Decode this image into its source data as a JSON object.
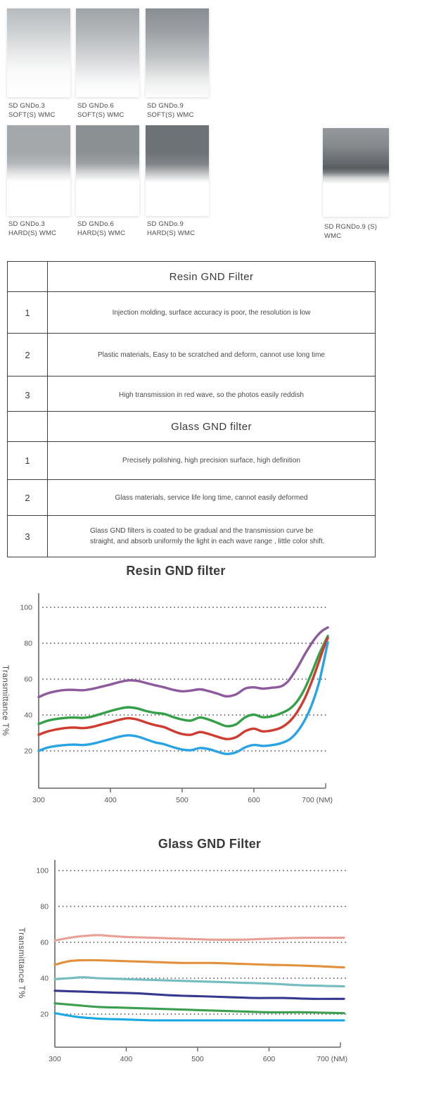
{
  "filters": {
    "soft": [
      {
        "line1": "SD GNDo.3",
        "line2": "SOFT(S) WMC",
        "gradient": "linear-gradient(180deg,#b7bbbe 0%,#c9ccce 22%,#e4e6e7 48%,#fafafa 70%,#ffffff 100%)"
      },
      {
        "line1": "SD GNDo.6",
        "line2": "SOFT(S) WMC",
        "gradient": "linear-gradient(180deg,#9ea3a7 0%,#b2b6b9 25%,#d3d5d7 55%,#f6f7f7 82%,#ffffff 100%)"
      },
      {
        "line1": "SD GNDo.9",
        "line2": "SOFT(S) WMC",
        "gradient": "linear-gradient(180deg,#888d91 0%,#9b9fa3 25%,#c0c3c5 55%,#eceded 82%,#fdfdfd 100%)"
      }
    ],
    "hard": [
      {
        "line1": "SD GNDo.3",
        "line2": "HARD(S) WMC",
        "gradient": "linear-gradient(180deg,#a4a8ab 0%,#a4a8ab 30%,#b4b7ba 42%,#e2e3e4 53%,#ffffff 62%,#ffffff 100%)"
      },
      {
        "line1": "SD GNDo.6",
        "line2": "HARD(S) WMC",
        "gradient": "linear-gradient(180deg,#8b9093 0%,#8b9093 30%,#9da1a4 42%,#d8dadb 53%,#ffffff 62%,#ffffff 100%)"
      },
      {
        "line1": "SD GNDo.9",
        "line2": "HARD(S) WMC",
        "gradient": "linear-gradient(180deg,#6d7276 0%,#6d7276 30%,#82868a 43%,#c8cacb 54%,#ffffff 63%,#ffffff 100%)"
      }
    ],
    "reverse": {
      "line1": "SD RGNDo.9 (S)",
      "line2": "WMC",
      "gradient": "linear-gradient(180deg,#95999c 0%,#85898c 20%,#686c70 38%,#595d60 45%,#787c7f 50%,#d0d2d3 56%,#ffffff 63%,#ffffff 100%)"
    }
  },
  "tables": [
    {
      "title": "Resin GND Filter",
      "rows": [
        {
          "num": "1",
          "text": "Injection molding, surface accuracy is poor, the resolution is low"
        },
        {
          "num": "2",
          "text": "Plastic materials, Easy to be scratched and deform, cannot use long time"
        },
        {
          "num": "3",
          "text": "High transmission in red wave, so the photos easily reddish"
        }
      ]
    },
    {
      "title": "Glass GND filter",
      "rows": [
        {
          "num": "1",
          "text": "Precisely polishing, high precision surface, high definition"
        },
        {
          "num": "2",
          "text": "Glass materials, service life long time, cannot easily deformed"
        },
        {
          "num": "3",
          "text": "Glass GND filters is coated to be gradual and the transmission curve be straight, and absorb uniformly the light in each wave range , little color shift."
        }
      ]
    }
  ],
  "chart_data": [
    {
      "type": "line",
      "title": "Resin GND filter",
      "ylabel": "Transmittance T%",
      "x_unit": "NM",
      "x_ticks": [
        300,
        400,
        500,
        600,
        700
      ],
      "x_tick_labels": [
        "300",
        "400",
        "500",
        "600",
        "700 (NM)"
      ],
      "y_ticks": [
        100,
        80,
        60,
        40,
        20
      ],
      "xlim": [
        300,
        703
      ],
      "ylim": [
        0,
        110
      ],
      "grid": "dotted-horizontal",
      "legend": "none",
      "series": [
        {
          "name": "purple-curve",
          "color": "#8d5a9e",
          "points": [
            [
              300,
              50
            ],
            [
              312,
              52
            ],
            [
              325,
              53.3
            ],
            [
              338,
              54
            ],
            [
              350,
              54
            ],
            [
              362,
              53.8
            ],
            [
              375,
              54.6
            ],
            [
              388,
              55.8
            ],
            [
              400,
              57
            ],
            [
              412,
              58.3
            ],
            [
              425,
              59.3
            ],
            [
              438,
              59
            ],
            [
              450,
              57.8
            ],
            [
              462,
              56.6
            ],
            [
              475,
              55.4
            ],
            [
              488,
              54
            ],
            [
              500,
              53.2
            ],
            [
              512,
              53.6
            ],
            [
              525,
              54.3
            ],
            [
              538,
              53.2
            ],
            [
              550,
              51.8
            ],
            [
              562,
              50.4
            ],
            [
              575,
              51.5
            ],
            [
              588,
              54.8
            ],
            [
              600,
              55.4
            ],
            [
              612,
              54.7
            ],
            [
              625,
              55.2
            ],
            [
              638,
              56
            ],
            [
              648,
              59
            ],
            [
              660,
              66
            ],
            [
              672,
              74.5
            ],
            [
              684,
              82
            ],
            [
              694,
              86.5
            ],
            [
              703,
              88.8
            ]
          ]
        },
        {
          "name": "green-curve",
          "color": "#33a048",
          "points": [
            [
              300,
              35
            ],
            [
              312,
              36.8
            ],
            [
              325,
              37.8
            ],
            [
              338,
              38.4
            ],
            [
              350,
              38.6
            ],
            [
              362,
              38.4
            ],
            [
              375,
              39.2
            ],
            [
              388,
              40.8
            ],
            [
              400,
              42.2
            ],
            [
              412,
              43.5
            ],
            [
              425,
              44.3
            ],
            [
              438,
              43.6
            ],
            [
              450,
              42.2
            ],
            [
              462,
              41.2
            ],
            [
              475,
              40.6
            ],
            [
              488,
              38.8
            ],
            [
              500,
              37.5
            ],
            [
              512,
              36.9
            ],
            [
              525,
              38.6
            ],
            [
              538,
              37.3
            ],
            [
              550,
              35.5
            ],
            [
              562,
              33.8
            ],
            [
              575,
              34.8
            ],
            [
              588,
              38.8
            ],
            [
              600,
              40.2
            ],
            [
              612,
              38.8
            ],
            [
              625,
              39.3
            ],
            [
              638,
              41
            ],
            [
              650,
              43.5
            ],
            [
              660,
              47.5
            ],
            [
              670,
              54
            ],
            [
              680,
              63
            ],
            [
              690,
              73
            ],
            [
              697,
              79
            ],
            [
              703,
              84
            ]
          ]
        },
        {
          "name": "red-curve",
          "color": "#cf3b2f",
          "points": [
            [
              300,
              29
            ],
            [
              312,
              30.8
            ],
            [
              325,
              32
            ],
            [
              338,
              32.8
            ],
            [
              350,
              33
            ],
            [
              362,
              32.7
            ],
            [
              375,
              33.4
            ],
            [
              388,
              34.8
            ],
            [
              400,
              36
            ],
            [
              412,
              37.3
            ],
            [
              425,
              38.2
            ],
            [
              438,
              37.4
            ],
            [
              450,
              35.8
            ],
            [
              462,
              34.4
            ],
            [
              475,
              33.2
            ],
            [
              488,
              31
            ],
            [
              500,
              29.4
            ],
            [
              512,
              29
            ],
            [
              525,
              30.5
            ],
            [
              538,
              29.3
            ],
            [
              550,
              27.8
            ],
            [
              562,
              26.6
            ],
            [
              575,
              27.6
            ],
            [
              588,
              31
            ],
            [
              600,
              32.4
            ],
            [
              612,
              30.9
            ],
            [
              625,
              31.4
            ],
            [
              638,
              33
            ],
            [
              650,
              36.5
            ],
            [
              660,
              41.5
            ],
            [
              670,
              48.5
            ],
            [
              680,
              58
            ],
            [
              690,
              69
            ],
            [
              697,
              77
            ],
            [
              703,
              83
            ]
          ]
        },
        {
          "name": "blue-curve",
          "color": "#29a3e2",
          "points": [
            [
              300,
              20
            ],
            [
              312,
              21.8
            ],
            [
              325,
              22.8
            ],
            [
              338,
              23.3
            ],
            [
              350,
              23.5
            ],
            [
              362,
              23.3
            ],
            [
              375,
              24
            ],
            [
              388,
              25.3
            ],
            [
              400,
              26.6
            ],
            [
              412,
              27.9
            ],
            [
              425,
              28.7
            ],
            [
              438,
              28
            ],
            [
              450,
              26.4
            ],
            [
              462,
              24.8
            ],
            [
              475,
              23.7
            ],
            [
              488,
              22
            ],
            [
              500,
              20.8
            ],
            [
              512,
              20.4
            ],
            [
              525,
              21.6
            ],
            [
              538,
              20.9
            ],
            [
              550,
              19.4
            ],
            [
              562,
              18.3
            ],
            [
              575,
              19.2
            ],
            [
              588,
              22
            ],
            [
              600,
              23.3
            ],
            [
              612,
              22.8
            ],
            [
              625,
              23.2
            ],
            [
              638,
              24.3
            ],
            [
              650,
              26.5
            ],
            [
              660,
              30.5
            ],
            [
              670,
              36.5
            ],
            [
              680,
              45
            ],
            [
              690,
              57
            ],
            [
              697,
              69
            ],
            [
              703,
              80.5
            ]
          ]
        }
      ]
    },
    {
      "type": "line",
      "title": "Glass GND Filter",
      "ylabel": "Transmittance T%",
      "x_unit": "NM",
      "x_ticks": [
        300,
        400,
        500,
        600,
        700
      ],
      "x_tick_labels": [
        "300",
        "400",
        "500",
        "600",
        "700 (NM)"
      ],
      "y_ticks": [
        100,
        80,
        60,
        40,
        20
      ],
      "xlim": [
        300,
        705
      ],
      "ylim": [
        0,
        110
      ],
      "grid": "dotted-horizontal",
      "legend": "none",
      "series": [
        {
          "name": "salmon-curve",
          "color": "#e79f96",
          "points": [
            [
              300,
              61
            ],
            [
              320,
              62.5
            ],
            [
              340,
              63.5
            ],
            [
              360,
              64
            ],
            [
              380,
              63.5
            ],
            [
              400,
              63
            ],
            [
              440,
              62.5
            ],
            [
              480,
              62
            ],
            [
              520,
              61.5
            ],
            [
              560,
              61.5
            ],
            [
              600,
              62
            ],
            [
              650,
              62.5
            ],
            [
              705,
              62.5
            ]
          ]
        },
        {
          "name": "orange-curve",
          "color": "#e2903b",
          "points": [
            [
              300,
              47.5
            ],
            [
              320,
              49.5
            ],
            [
              340,
              50
            ],
            [
              360,
              50
            ],
            [
              400,
              49.5
            ],
            [
              440,
              49
            ],
            [
              480,
              48.5
            ],
            [
              520,
              48.5
            ],
            [
              560,
              48
            ],
            [
              600,
              47.5
            ],
            [
              650,
              47
            ],
            [
              705,
              46
            ]
          ]
        },
        {
          "name": "teal-curve",
          "color": "#74bcbf",
          "points": [
            [
              300,
              39.5
            ],
            [
              320,
              40
            ],
            [
              340,
              40.5
            ],
            [
              360,
              40
            ],
            [
              400,
              39.5
            ],
            [
              440,
              39
            ],
            [
              480,
              38.5
            ],
            [
              520,
              38
            ],
            [
              560,
              37.5
            ],
            [
              600,
              37
            ],
            [
              650,
              36
            ],
            [
              705,
              35.5
            ]
          ]
        },
        {
          "name": "navy-curve",
          "color": "#35388f",
          "points": [
            [
              300,
              33
            ],
            [
              340,
              32.5
            ],
            [
              380,
              32
            ],
            [
              420,
              31.5
            ],
            [
              460,
              30.5
            ],
            [
              500,
              30
            ],
            [
              540,
              29.5
            ],
            [
              580,
              29
            ],
            [
              620,
              29
            ],
            [
              660,
              28.5
            ],
            [
              705,
              28.5
            ]
          ]
        },
        {
          "name": "darkgreen-curve",
          "color": "#3d9e4f",
          "points": [
            [
              300,
              26
            ],
            [
              330,
              25
            ],
            [
              360,
              24
            ],
            [
              400,
              23.5
            ],
            [
              440,
              23
            ],
            [
              480,
              22.5
            ],
            [
              520,
              22
            ],
            [
              560,
              21.5
            ],
            [
              600,
              21
            ],
            [
              650,
              21
            ],
            [
              705,
              20.5
            ]
          ]
        },
        {
          "name": "cyan-curve",
          "color": "#1aa8e0",
          "points": [
            [
              300,
              20.5
            ],
            [
              330,
              18.5
            ],
            [
              360,
              17.5
            ],
            [
              400,
              17
            ],
            [
              440,
              16.5
            ],
            [
              480,
              16.5
            ],
            [
              520,
              16.5
            ],
            [
              560,
              16.5
            ],
            [
              600,
              16.5
            ],
            [
              650,
              16.5
            ],
            [
              705,
              16.5
            ]
          ]
        }
      ]
    }
  ]
}
